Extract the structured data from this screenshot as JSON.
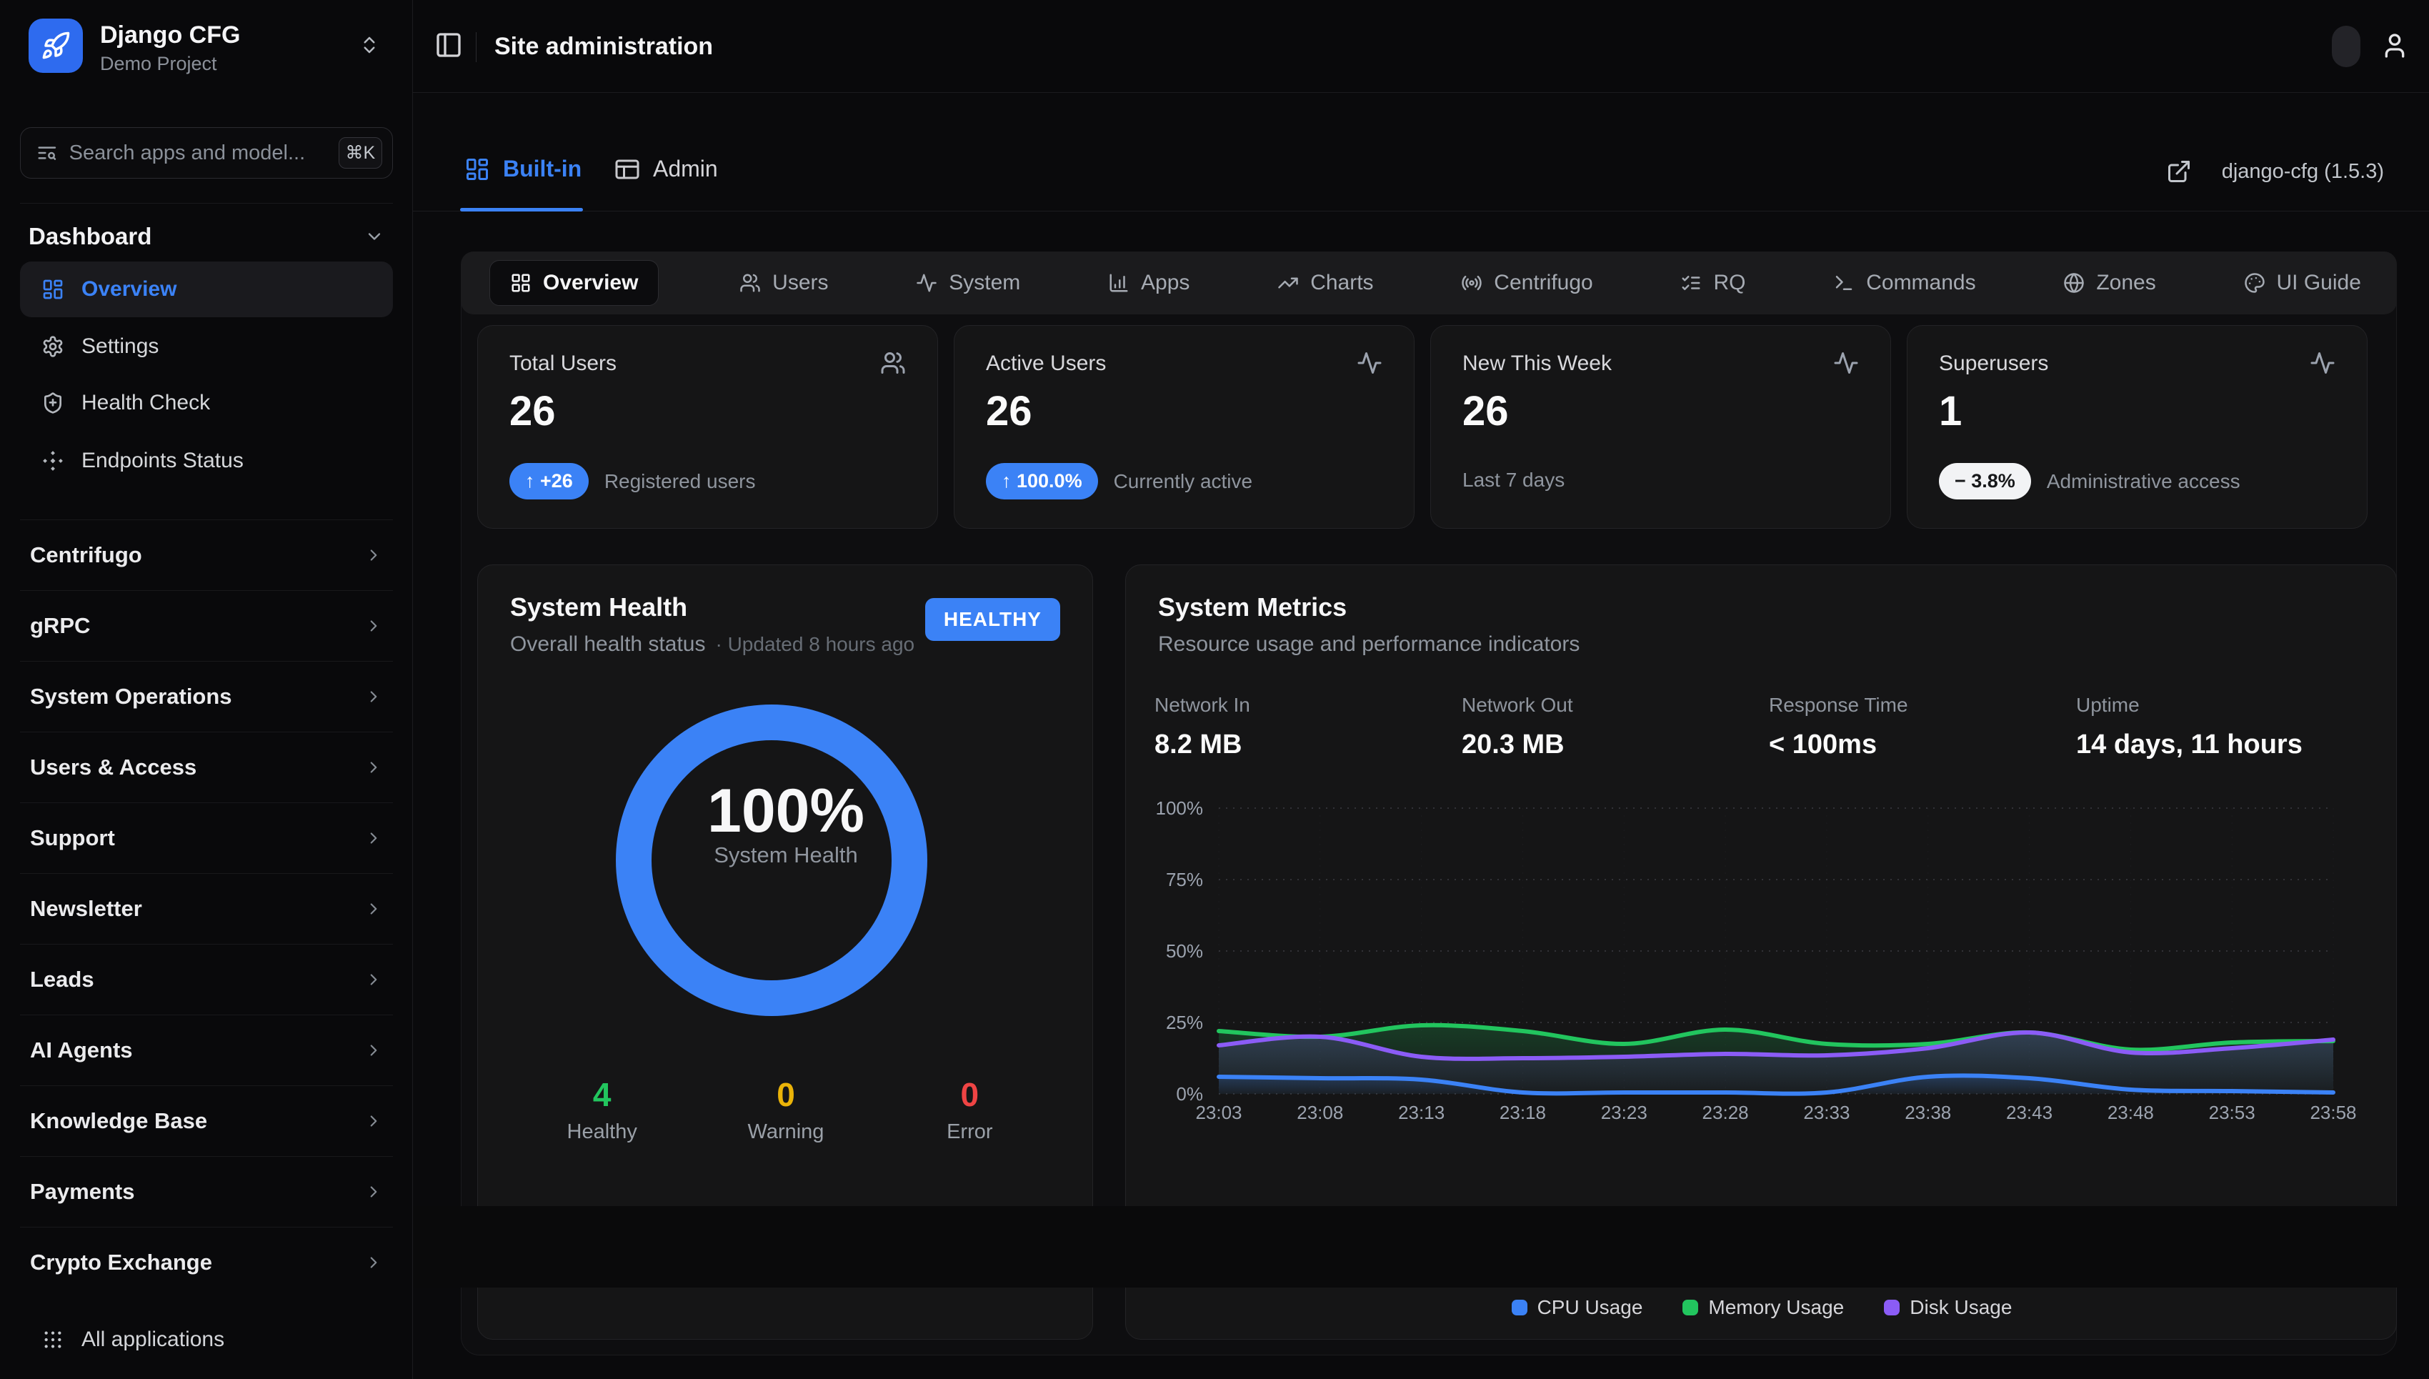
{
  "brand": {
    "name": "Django CFG",
    "subtitle": "Demo Project"
  },
  "header": {
    "title": "Site administration"
  },
  "search": {
    "placeholder": "Search apps and model...",
    "shortcut": "⌘K"
  },
  "sidebar": {
    "dashboard_label": "Dashboard",
    "items": [
      {
        "label": "Overview"
      },
      {
        "label": "Settings"
      },
      {
        "label": "Health Check"
      },
      {
        "label": "Endpoints Status"
      }
    ],
    "sections": [
      "Centrifugo",
      "gRPC",
      "System Operations",
      "Users & Access",
      "Support",
      "Newsletter",
      "Leads",
      "AI Agents",
      "Knowledge Base",
      "Payments",
      "Crypto Exchange"
    ],
    "footer": {
      "label": "All applications"
    }
  },
  "tabs": {
    "builtin": "Built-in",
    "admin": "Admin",
    "version": "django-cfg (1.5.3)"
  },
  "subtabs": [
    "Overview",
    "Users",
    "System",
    "Apps",
    "Charts",
    "Centrifugo",
    "RQ",
    "Commands",
    "Zones",
    "UI Guide"
  ],
  "stat_cards": [
    {
      "title": "Total Users",
      "value": "26",
      "badge": "↑ +26",
      "caption": "Registered users"
    },
    {
      "title": "Active Users",
      "value": "26",
      "badge": "↑ 100.0%",
      "caption": "Currently active"
    },
    {
      "title": "New This Week",
      "value": "26",
      "caption": "Last 7 days"
    },
    {
      "title": "Superusers",
      "value": "1",
      "badge": "− 3.8%",
      "caption": "Administrative access"
    }
  ],
  "health": {
    "title": "System Health",
    "subtitle": "Overall health status",
    "updated": "· Updated 8 hours ago",
    "status_badge": "HEALTHY",
    "percent": 100,
    "percent_label": "100%",
    "gauge_label": "System Health",
    "stats": [
      {
        "value": "4",
        "label": "Healthy",
        "color": "#22c55e"
      },
      {
        "value": "0",
        "label": "Warning",
        "color": "#eab308"
      },
      {
        "value": "0",
        "label": "Error",
        "color": "#ef4444"
      }
    ]
  },
  "metrics": {
    "title": "System Metrics",
    "subtitle": "Resource usage and performance indicators",
    "kpis": [
      {
        "label": "Network In",
        "value": "8.2 MB"
      },
      {
        "label": "Network Out",
        "value": "20.3 MB"
      },
      {
        "label": "Response Time",
        "value": "< 100ms"
      },
      {
        "label": "Uptime",
        "value": "14 days, 11 hours"
      }
    ]
  },
  "chart_data": {
    "type": "area",
    "title": "System Metrics",
    "x": [
      "23:03",
      "23:08",
      "23:13",
      "23:18",
      "23:23",
      "23:28",
      "23:33",
      "23:38",
      "23:43",
      "23:48",
      "23:53",
      "23:58"
    ],
    "ylim": [
      0,
      100
    ],
    "yticks": [
      0,
      25,
      50,
      75,
      100
    ],
    "ytick_suffix": "%",
    "grid": "dotted",
    "legend_position": "bottom-center",
    "series": [
      {
        "name": "CPU Usage",
        "color": "#3b82f6",
        "values": [
          6,
          5.5,
          5,
          0.5,
          0.5,
          0.5,
          0.5,
          6,
          5.5,
          1.5,
          1,
          0.5
        ]
      },
      {
        "name": "Memory Usage",
        "color": "#22c55e",
        "values": [
          22,
          20,
          24,
          22,
          17.5,
          22.5,
          17.5,
          17.5,
          21.5,
          15.5,
          18,
          18.5
        ]
      },
      {
        "name": "Disk Usage",
        "color": "#8b5cf6",
        "values": [
          17,
          20,
          13,
          12.5,
          13,
          14,
          13.5,
          16,
          21.5,
          14.5,
          16,
          19
        ]
      }
    ]
  },
  "colors": {
    "accent": "#3b82f6",
    "success": "#22c55e",
    "warning": "#eab308",
    "danger": "#ef4444",
    "purple": "#8b5cf6"
  }
}
